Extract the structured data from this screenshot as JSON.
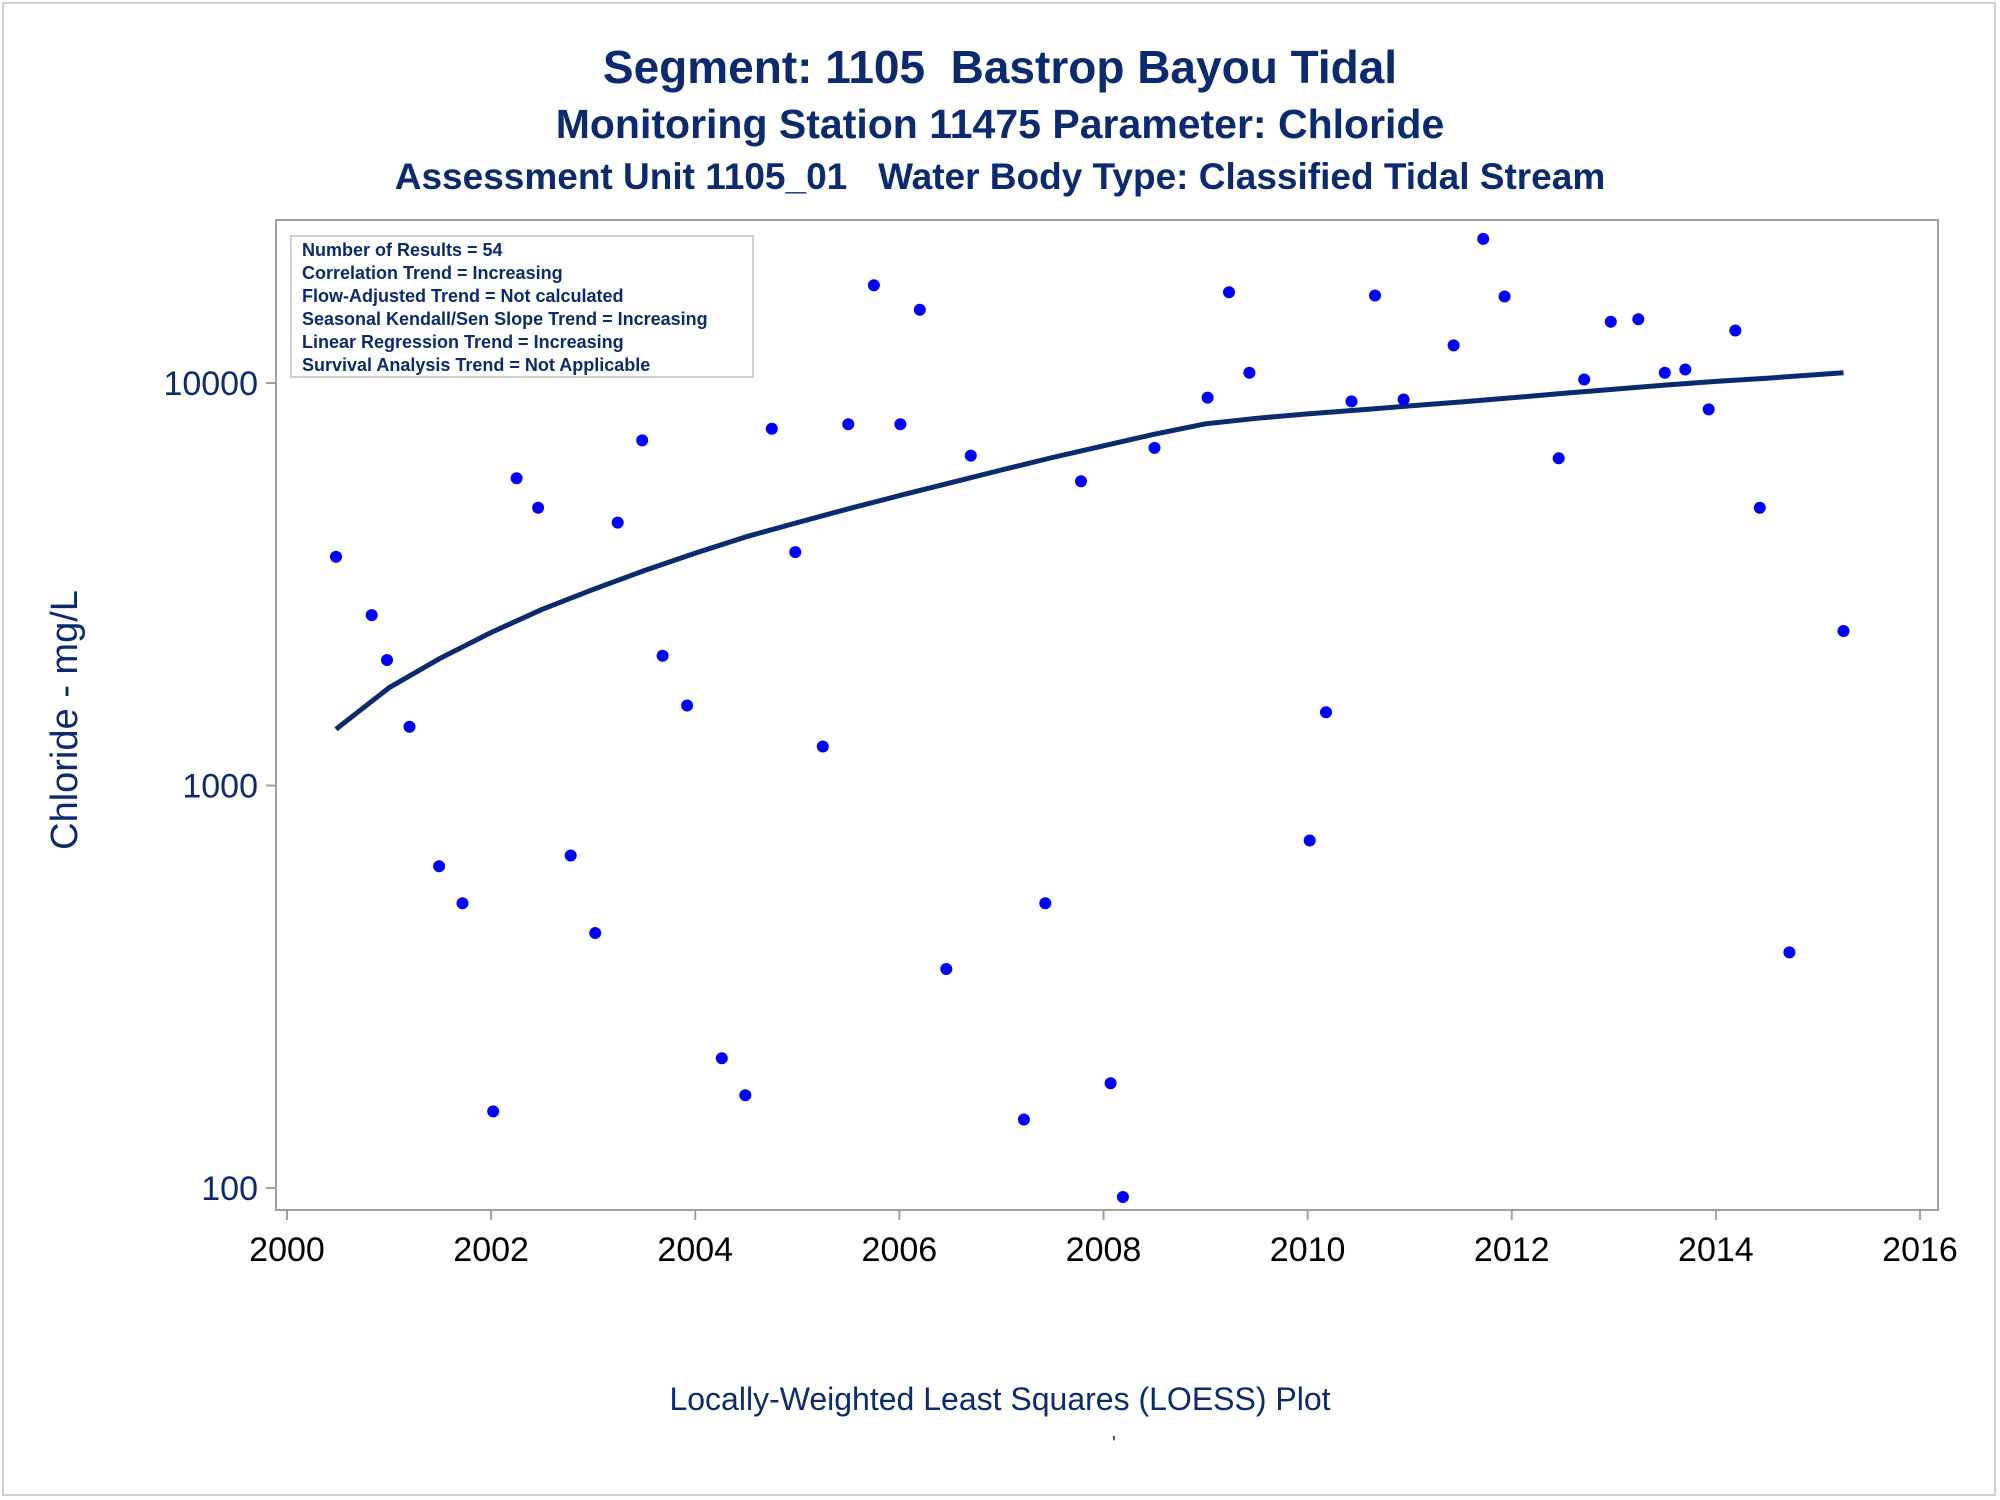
{
  "titles": {
    "line1": "Segment: 1105  Bastrop Bayou Tidal",
    "line2": "Monitoring Station 11475 Parameter: Chloride",
    "line3": "Assessment Unit 1105_01   Water Body Type: Classified Tidal Stream"
  },
  "footnote": "Locally-Weighted Least Squares (LOESS) Plot",
  "footnote_mark": "'",
  "colors": {
    "points": "#0000ff",
    "loess_line": "#0b2a6f",
    "text": "#0b2a6f",
    "axis": "#a0a0a0"
  },
  "chart_data": {
    "type": "scatter",
    "xlabel": "",
    "ylabel": "Chloride - mg/L",
    "xlim": [
      2000,
      2016
    ],
    "ylim": [
      100,
      23000
    ],
    "yscale": "log",
    "xticks": [
      "2000",
      "2002",
      "2004",
      "2006",
      "2008",
      "2010",
      "2012",
      "2014",
      "2016"
    ],
    "yticks": [
      "100",
      "1000",
      "10000"
    ],
    "legend_position": "top-left",
    "annotations": [
      "Number of Results = 54",
      "Correlation Trend = Increasing",
      "Flow-Adjusted Trend = Not calculated",
      "Seasonal Kendall/Sen Slope Trend = Increasing",
      "Linear Regression Trend = Increasing",
      "Survival Analysis Trend = Not Applicable"
    ],
    "series": [
      {
        "type": "scatter",
        "x": [
          2000.48,
          2000.83,
          2000.98,
          2001.2,
          2001.49,
          2001.72,
          2002.02,
          2002.25,
          2002.46,
          2002.78,
          2003.02,
          2003.24,
          2003.48,
          2003.68,
          2003.92,
          2004.26,
          2004.49,
          2004.75,
          2004.98,
          2005.25,
          2005.5,
          2005.75,
          2006.01,
          2006.2,
          2006.46,
          2006.7,
          2007.22,
          2007.43,
          2007.78,
          2008.07,
          2008.19,
          2008.5,
          2009.02,
          2009.23,
          2009.43,
          2010.02,
          2010.18,
          2010.43,
          2010.66,
          2010.94,
          2011.43,
          2011.72,
          2011.93,
          2012.46,
          2012.71,
          2012.97,
          2013.24,
          2013.5,
          2013.7,
          2013.93,
          2014.19,
          2014.43,
          2014.72,
          2015.25
        ],
        "y": [
          3700,
          2650,
          2050,
          1400,
          630,
          510,
          155,
          5800,
          4900,
          670,
          430,
          4500,
          7200,
          2100,
          1580,
          210,
          170,
          7700,
          3800,
          1250,
          7900,
          17500,
          7900,
          15200,
          350,
          6600,
          148,
          510,
          5700,
          182,
          95,
          6900,
          9200,
          16800,
          10600,
          730,
          1520,
          9000,
          16500,
          9100,
          12400,
          22800,
          16400,
          6500,
          10200,
          14200,
          14400,
          10600,
          10800,
          8600,
          13500,
          4900,
          385,
          2420
        ]
      },
      {
        "type": "line",
        "name": "",
        "x": [
          2000.48,
          2001.0,
          2001.5,
          2002.0,
          2002.5,
          2003.0,
          2003.5,
          2004.0,
          2004.5,
          2005.0,
          2005.5,
          2006.0,
          2006.5,
          2007.0,
          2007.5,
          2008.0,
          2008.5,
          2009.0,
          2009.5,
          2010.0,
          2010.5,
          2011.0,
          2011.5,
          2012.0,
          2012.5,
          2013.0,
          2013.5,
          2014.0,
          2014.5,
          2015.25
        ],
        "y": [
          1380,
          1750,
          2070,
          2400,
          2740,
          3070,
          3420,
          3780,
          4150,
          4500,
          4870,
          5250,
          5650,
          6080,
          6530,
          6980,
          7460,
          7920,
          8170,
          8380,
          8570,
          8770,
          8970,
          9190,
          9420,
          9650,
          9880,
          10090,
          10280,
          10600
        ]
      }
    ]
  }
}
